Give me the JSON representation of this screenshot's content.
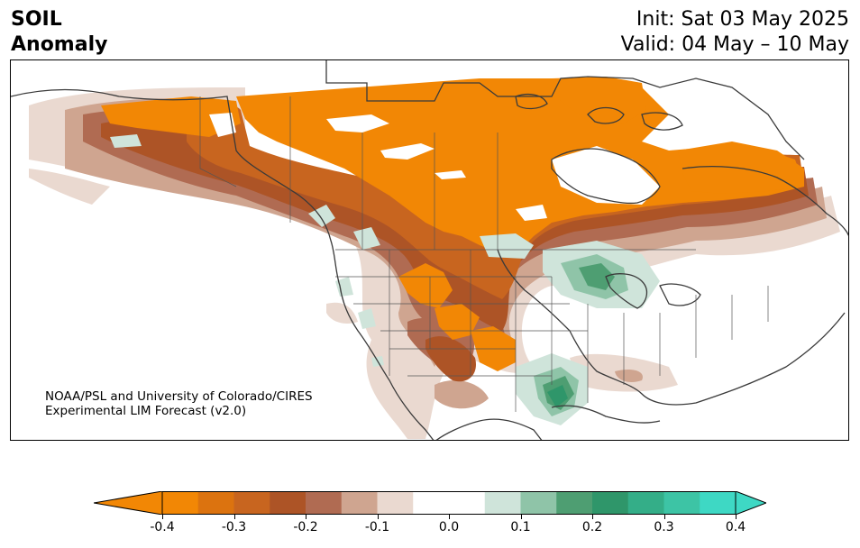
{
  "title": {
    "line1": "SOIL",
    "line2": "Anomaly",
    "init": "Init: Sat 03 May 2025",
    "valid": "Valid: 04 May – 10 May"
  },
  "credit": {
    "line1": "NOAA/PSL and University of Colorado/CIRES",
    "line2": "Experimental LIM Forecast (v2.0)"
  },
  "colorbar": {
    "levels": [
      -0.4,
      -0.35,
      -0.3,
      -0.25,
      -0.2,
      -0.15,
      -0.1,
      -0.05,
      0.05,
      0.1,
      0.15,
      0.2,
      0.25,
      0.3,
      0.35,
      0.4
    ],
    "colors": [
      "#f28705",
      "#dc730f",
      "#c8651f",
      "#ad5426",
      "#b06b52",
      "#cfa590",
      "#ead9d0",
      "#ffffff",
      "#cfe4da",
      "#8fc4a8",
      "#4e9e72",
      "#2f966a",
      "#34ae88",
      "#3dc4a5",
      "#3ed8c4"
    ],
    "under_color": "#f28705",
    "over_color": "#3ed8c4",
    "tick_labels": [
      "-0.4",
      "-0.3",
      "-0.2",
      "-0.1",
      "0.0",
      "0.1",
      "0.2",
      "0.3",
      "0.4"
    ]
  }
}
